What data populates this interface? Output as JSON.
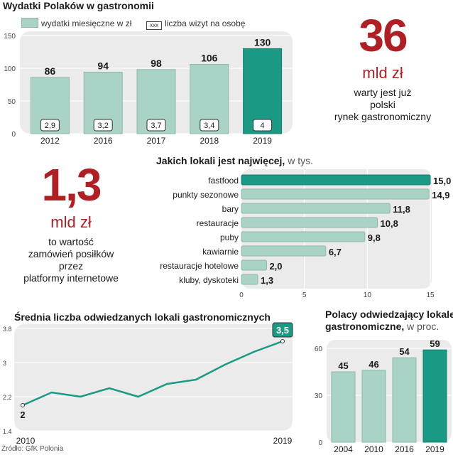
{
  "source": "Źródło: GfK Polonia",
  "stat_market": {
    "value": "36",
    "unit": "mld zł",
    "desc": [
      "warty jest już",
      "polski",
      "rynek gastronomiczny"
    ]
  },
  "stat_online": {
    "value": "1,3",
    "unit": "mld zł",
    "desc": [
      "to wartość",
      "zamówień posiłków",
      "przez",
      "platformy internetowe"
    ]
  },
  "colors": {
    "light": "#a9d3c6",
    "dark": "#1a9a85",
    "panel": "#ebebeb",
    "red": "#b01f24"
  },
  "chart_data": [
    {
      "type": "bar",
      "title": "Wydatki Polaków w gastronomii",
      "legend": {
        "bar_label": "wydatki miesięczne w zł",
        "box_sample": "xxx",
        "box_label": "liczba wizyt na osobę"
      },
      "categories": [
        "2012",
        "2016",
        "2017",
        "2018",
        "2019"
      ],
      "values": [
        86,
        94,
        98,
        106,
        130
      ],
      "value_labels": [
        "86",
        "94",
        "98",
        "106",
        "130"
      ],
      "visits": [
        "2,9",
        "3,2",
        "3,7",
        "3,4",
        "4"
      ],
      "yticks": [
        "0",
        "50",
        "100",
        "150"
      ],
      "ylim": [
        0,
        150
      ],
      "highlight_index": 4
    },
    {
      "type": "bar",
      "orientation": "horizontal",
      "title": "Jakich lokali jest najwięcej,",
      "title_unit": "w tys.",
      "categories": [
        "fastfood",
        "punkty sezonowe",
        "bary",
        "restauracje",
        "puby",
        "kawiarnie",
        "restauracje hotelowe",
        "kluby, dyskoteki"
      ],
      "values": [
        15.0,
        14.9,
        11.8,
        10.8,
        9.8,
        6.7,
        2.0,
        1.3
      ],
      "value_labels": [
        "15,0",
        "14,9",
        "11,8",
        "10,8",
        "9,8",
        "6,7",
        "2,0",
        "1,3"
      ],
      "xticks": [
        "0",
        "5",
        "10",
        "15"
      ],
      "xlim": [
        0,
        15
      ],
      "highlight_index": 0
    },
    {
      "type": "line",
      "title": "Średnia liczba odwiedzanych lokali gastronomicznych",
      "x": [
        2010,
        2011,
        2012,
        2013,
        2014,
        2015,
        2016,
        2017,
        2018,
        2019
      ],
      "y": [
        2.0,
        2.3,
        2.2,
        2.4,
        2.2,
        2.5,
        2.6,
        2.95,
        3.25,
        3.5
      ],
      "start_label": "2",
      "end_label": "3,5",
      "x_labels": [
        "2010",
        "2019"
      ],
      "yticks": [
        "1.4",
        "2.2",
        "3",
        "3.8"
      ],
      "ylim": [
        1.4,
        3.8
      ]
    },
    {
      "type": "bar",
      "title": "Polacy odwiedzający lokale",
      "title_line2": "gastronomiczne,",
      "title_unit": "w proc.",
      "categories": [
        "2004",
        "2010",
        "2016",
        "2019"
      ],
      "values": [
        45,
        46,
        54,
        59
      ],
      "value_labels": [
        "45",
        "46",
        "54",
        "59"
      ],
      "yticks": [
        "0",
        "30",
        "60"
      ],
      "ylim": [
        0,
        60
      ],
      "highlight_index": 3
    }
  ]
}
